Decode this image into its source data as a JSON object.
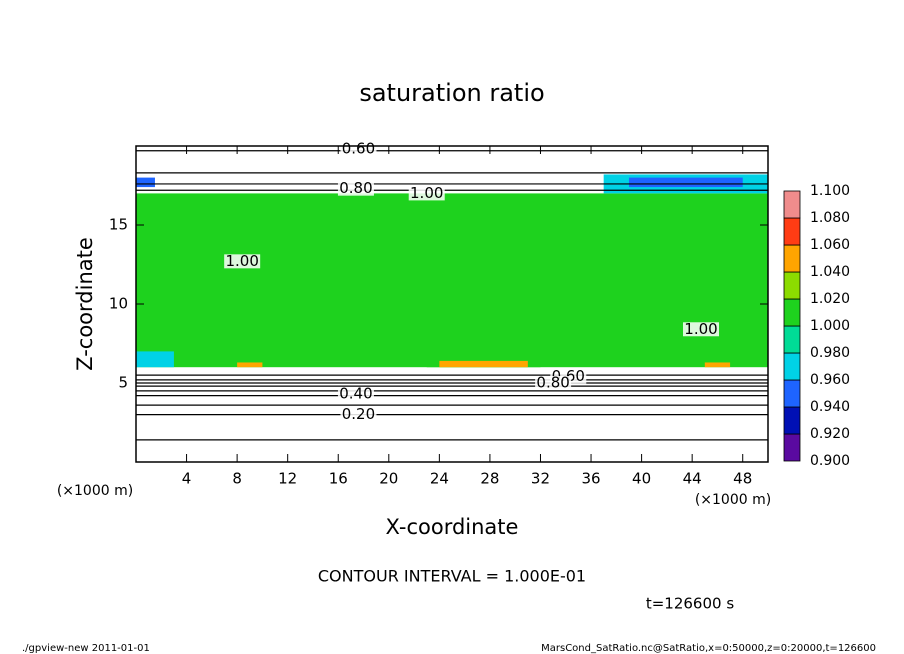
{
  "chart_data": {
    "type": "heatmap",
    "title": "saturation ratio",
    "x_label": "X-coordinate",
    "y_label": "Z-coordinate",
    "x_unit": "(×1000 m)",
    "y_unit": "(×1000 m)",
    "contour_interval": "CONTOUR INTERVAL = 1.000E-01",
    "time_label": "t=126600 s",
    "footer_left": "./gpview-new   2011-01-01",
    "footer_right": "MarsCond_SatRatio.nc@SatRatio,x=0:50000,z=0:20000,t=126600",
    "xlim": [
      0,
      50
    ],
    "ylim": [
      0,
      20
    ],
    "xticks": [
      4,
      8,
      12,
      16,
      20,
      24,
      28,
      32,
      36,
      40,
      44,
      48
    ],
    "yticks": [
      5,
      10,
      15
    ],
    "colorbar": {
      "levels": [
        {
          "value": 0.9,
          "label": "0.900"
        },
        {
          "value": 0.92,
          "label": "0.920"
        },
        {
          "value": 0.94,
          "label": "0.940"
        },
        {
          "value": 0.96,
          "label": "0.960"
        },
        {
          "value": 0.98,
          "label": "0.980"
        },
        {
          "value": 1.0,
          "label": "1.000"
        },
        {
          "value": 1.02,
          "label": "1.020"
        },
        {
          "value": 1.04,
          "label": "1.040"
        },
        {
          "value": 1.06,
          "label": "1.060"
        },
        {
          "value": 1.08,
          "label": "1.080"
        },
        {
          "value": 1.1,
          "label": "1.100"
        }
      ],
      "colors": [
        "#5a0aa0",
        "#0010b4",
        "#1e64ff",
        "#00d2e6",
        "#00dc96",
        "#1ed21e",
        "#8cdc00",
        "#ffa500",
        "#ff3c14",
        "#f08c8c"
      ]
    },
    "regions": [
      {
        "x": [
          0,
          50
        ],
        "z": [
          6,
          17
        ],
        "value": 1.0
      },
      {
        "x": [
          0,
          3
        ],
        "z": [
          6,
          7
        ],
        "value": 0.97
      },
      {
        "x": [
          0,
          1.5
        ],
        "z": [
          17.4,
          18
        ],
        "value": 0.94
      },
      {
        "x": [
          37,
          50
        ],
        "z": [
          17,
          18.2
        ],
        "value": 0.97
      },
      {
        "x": [
          39,
          48
        ],
        "z": [
          17.4,
          18
        ],
        "value": 0.95
      },
      {
        "x": [
          23,
          32
        ],
        "z": [
          6,
          8
        ],
        "value": 1.01
      },
      {
        "x": [
          24,
          31
        ],
        "z": [
          6,
          6.4
        ],
        "value": 1.04
      },
      {
        "x": [
          8,
          10
        ],
        "z": [
          6,
          6.3
        ],
        "value": 1.05
      },
      {
        "x": [
          45,
          47
        ],
        "z": [
          6,
          6.3
        ],
        "value": 1.05
      }
    ],
    "contours": [
      {
        "level": 0.1,
        "z": 1.4
      },
      {
        "level": 0.2,
        "z": 3.0
      },
      {
        "level": 0.3,
        "z": 3.6
      },
      {
        "level": 0.4,
        "z": 4.2
      },
      {
        "level": 0.5,
        "z": 4.5
      },
      {
        "level": 0.6,
        "z": 4.8
      },
      {
        "level": 0.7,
        "z": 5.0
      },
      {
        "level": 0.8,
        "z": 5.2
      },
      {
        "level": 0.9,
        "z": 5.5
      },
      {
        "level": 0.9,
        "z": 17.2
      },
      {
        "level": 0.8,
        "z": 17.6
      },
      {
        "level": 0.7,
        "z": 18.3
      },
      {
        "level": 0.6,
        "z": 19.7
      }
    ],
    "contour_labels": [
      {
        "text": "0.60",
        "x": 17.6,
        "z": 19.8
      },
      {
        "text": "0.80",
        "x": 17.4,
        "z": 17.3
      },
      {
        "text": "1.00",
        "x": 23,
        "z": 17
      },
      {
        "text": "1.00",
        "x": 8.4,
        "z": 12.7
      },
      {
        "text": "1.00",
        "x": 44.7,
        "z": 8.4
      },
      {
        "text": "0.60",
        "x": 34.2,
        "z": 5.4
      },
      {
        "text": "0.80",
        "x": 33,
        "z": 5.0
      },
      {
        "text": "0.40",
        "x": 17.4,
        "z": 4.3
      },
      {
        "text": "0.20",
        "x": 17.6,
        "z": 3.0
      }
    ]
  }
}
